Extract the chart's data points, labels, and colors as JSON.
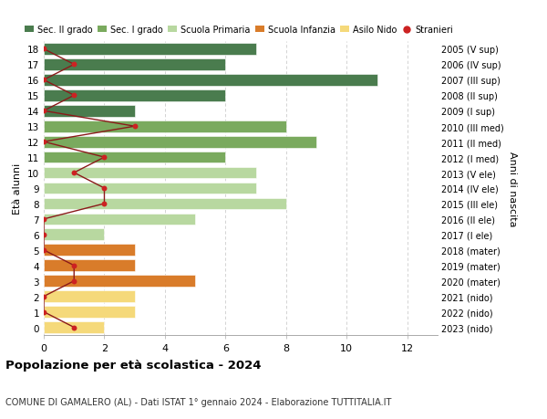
{
  "ages": [
    18,
    17,
    16,
    15,
    14,
    13,
    12,
    11,
    10,
    9,
    8,
    7,
    6,
    5,
    4,
    3,
    2,
    1,
    0
  ],
  "right_labels": [
    "2005 (V sup)",
    "2006 (IV sup)",
    "2007 (III sup)",
    "2008 (II sup)",
    "2009 (I sup)",
    "2010 (III med)",
    "2011 (II med)",
    "2012 (I med)",
    "2013 (V ele)",
    "2014 (IV ele)",
    "2015 (III ele)",
    "2016 (II ele)",
    "2017 (I ele)",
    "2018 (mater)",
    "2019 (mater)",
    "2020 (mater)",
    "2021 (nido)",
    "2022 (nido)",
    "2023 (nido)"
  ],
  "bar_values": [
    7,
    6,
    11,
    6,
    3,
    8,
    9,
    6,
    7,
    7,
    8,
    5,
    2,
    3,
    3,
    5,
    3,
    3,
    2
  ],
  "bar_colors": [
    "#4a7c4e",
    "#4a7c4e",
    "#4a7c4e",
    "#4a7c4e",
    "#4a7c4e",
    "#7aaa5e",
    "#7aaa5e",
    "#7aaa5e",
    "#b8d8a0",
    "#b8d8a0",
    "#b8d8a0",
    "#b8d8a0",
    "#b8d8a0",
    "#d97c2a",
    "#d97c2a",
    "#d97c2a",
    "#f5d97a",
    "#f5d97a",
    "#f5d97a"
  ],
  "stranieri_values": [
    0,
    1,
    0,
    1,
    0,
    3,
    0,
    2,
    1,
    2,
    2,
    0,
    0,
    0,
    1,
    1,
    0,
    0,
    1
  ],
  "stranieri_line_color": "#8b1a1a",
  "stranieri_marker_color": "#cc2222",
  "legend_labels": [
    "Sec. II grado",
    "Sec. I grado",
    "Scuola Primaria",
    "Scuola Infanzia",
    "Asilo Nido",
    "Stranieri"
  ],
  "legend_colors": [
    "#4a7c4e",
    "#7aaa5e",
    "#b8d8a0",
    "#d97c2a",
    "#f5d97a",
    "#cc2222"
  ],
  "title": "Popolazione per età scolastica - 2024",
  "subtitle": "COMUNE DI GAMALERO (AL) - Dati ISTAT 1° gennaio 2024 - Elaborazione TUTTITALIA.IT",
  "ylabel_left": "Età alunni",
  "ylabel_right": "Anni di nascita",
  "xlim": [
    0,
    13
  ],
  "ylim": [
    -0.5,
    18.5
  ],
  "xticks": [
    0,
    2,
    4,
    6,
    8,
    10,
    12
  ],
  "background_color": "#ffffff",
  "grid_color": "#cccccc"
}
